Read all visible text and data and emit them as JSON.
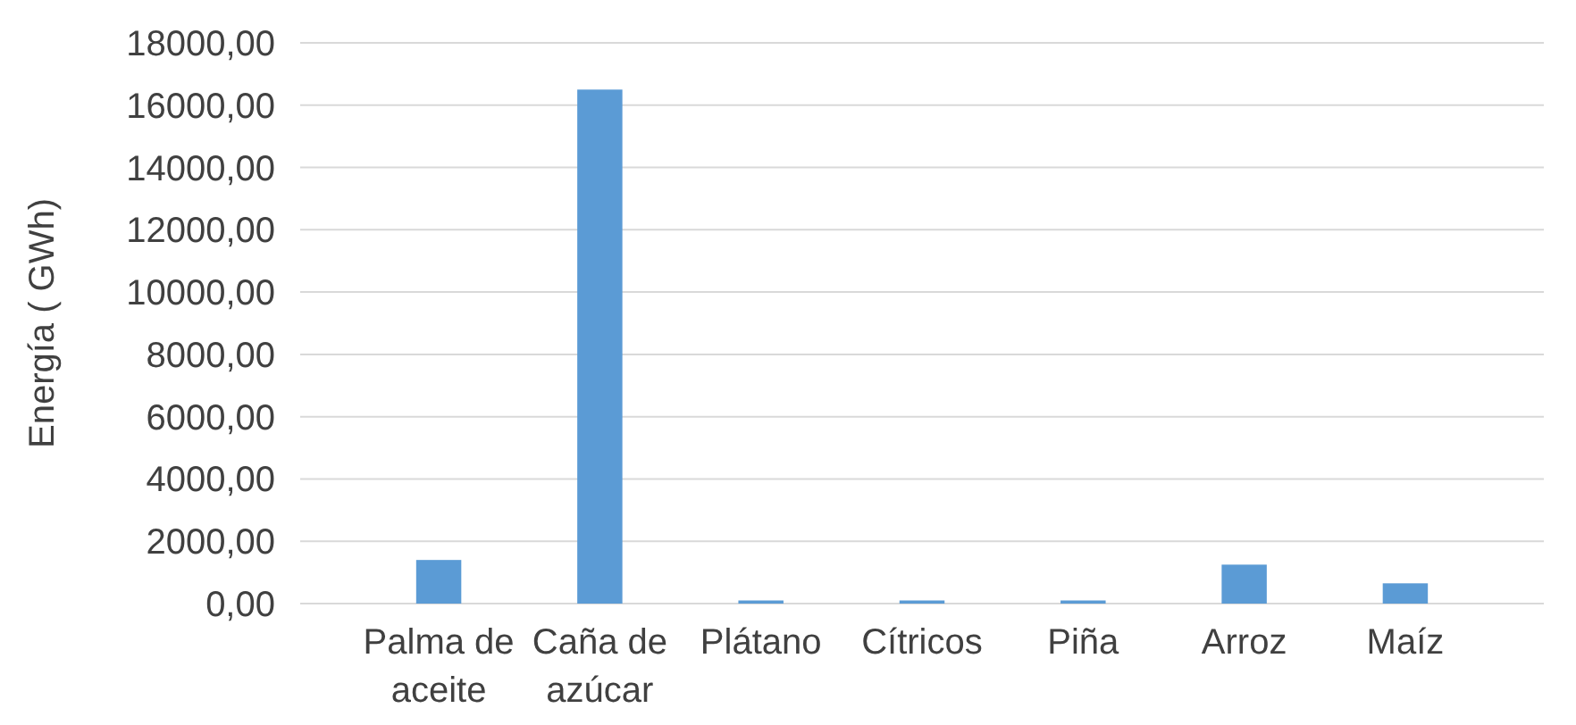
{
  "chart_data": {
    "type": "bar",
    "ylabel": "Energía ( GWh)",
    "categories": [
      "Palma de aceite",
      "Caña de azúcar",
      "Plátano",
      "Cítricos",
      "Piña",
      "Arroz",
      "Maíz"
    ],
    "values": [
      1400,
      16500,
      100,
      100,
      100,
      1250,
      650
    ],
    "color": "#5b9bd5",
    "ylim": [
      0,
      18000
    ],
    "yticks": [
      {
        "value": 0,
        "label": "0,00"
      },
      {
        "value": 2000,
        "label": "2000,00"
      },
      {
        "value": 4000,
        "label": "4000,00"
      },
      {
        "value": 6000,
        "label": "6000,00"
      },
      {
        "value": 8000,
        "label": "8000,00"
      },
      {
        "value": 10000,
        "label": "10000,00"
      },
      {
        "value": 12000,
        "label": "12000,00"
      },
      {
        "value": 14000,
        "label": "14000,00"
      },
      {
        "value": 16000,
        "label": "16000,00"
      },
      {
        "value": 18000,
        "label": "18000,00"
      }
    ],
    "grid": true
  }
}
